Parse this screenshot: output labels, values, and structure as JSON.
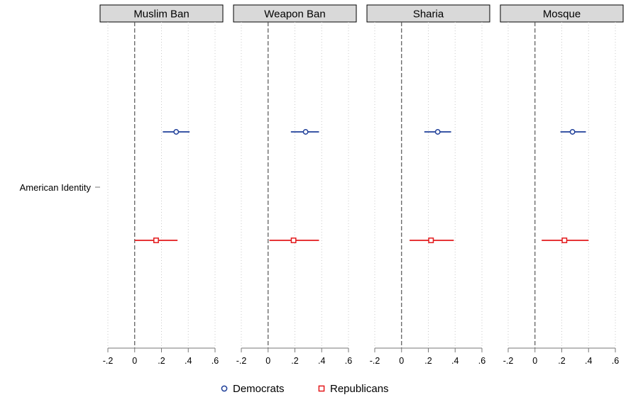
{
  "chart_data": {
    "type": "scatter",
    "subtype": "coefficient-plot-with-confidence-intervals",
    "y_categories": [
      "American Identity"
    ],
    "xlim": [
      -0.2,
      0.6
    ],
    "x_ticks": [
      -0.2,
      0,
      0.2,
      0.4,
      0.6
    ],
    "x_tick_labels": [
      "-.2",
      "0",
      ".2",
      ".4",
      ".6"
    ],
    "reference_line": 0,
    "grid": "vertical-dotted",
    "legend_position": "bottom",
    "colors": {
      "Democrats": "#1f3f99",
      "Republicans": "#e3191c"
    },
    "markers": {
      "Democrats": "circle",
      "Republicans": "square"
    },
    "panels": [
      {
        "title": "Muslim Ban",
        "series": [
          {
            "name": "Democrats",
            "estimate": 0.31,
            "ci": [
              0.21,
              0.41
            ]
          },
          {
            "name": "Republicans",
            "estimate": 0.16,
            "ci": [
              0.0,
              0.32
            ]
          }
        ]
      },
      {
        "title": "Weapon Ban",
        "series": [
          {
            "name": "Democrats",
            "estimate": 0.28,
            "ci": [
              0.17,
              0.38
            ]
          },
          {
            "name": "Republicans",
            "estimate": 0.19,
            "ci": [
              0.01,
              0.38
            ]
          }
        ]
      },
      {
        "title": "Sharia",
        "series": [
          {
            "name": "Democrats",
            "estimate": 0.27,
            "ci": [
              0.17,
              0.37
            ]
          },
          {
            "name": "Republicans",
            "estimate": 0.22,
            "ci": [
              0.06,
              0.39
            ]
          }
        ]
      },
      {
        "title": "Mosque",
        "series": [
          {
            "name": "Democrats",
            "estimate": 0.28,
            "ci": [
              0.19,
              0.38
            ]
          },
          {
            "name": "Republicans",
            "estimate": 0.22,
            "ci": [
              0.05,
              0.4
            ]
          }
        ]
      }
    ]
  }
}
